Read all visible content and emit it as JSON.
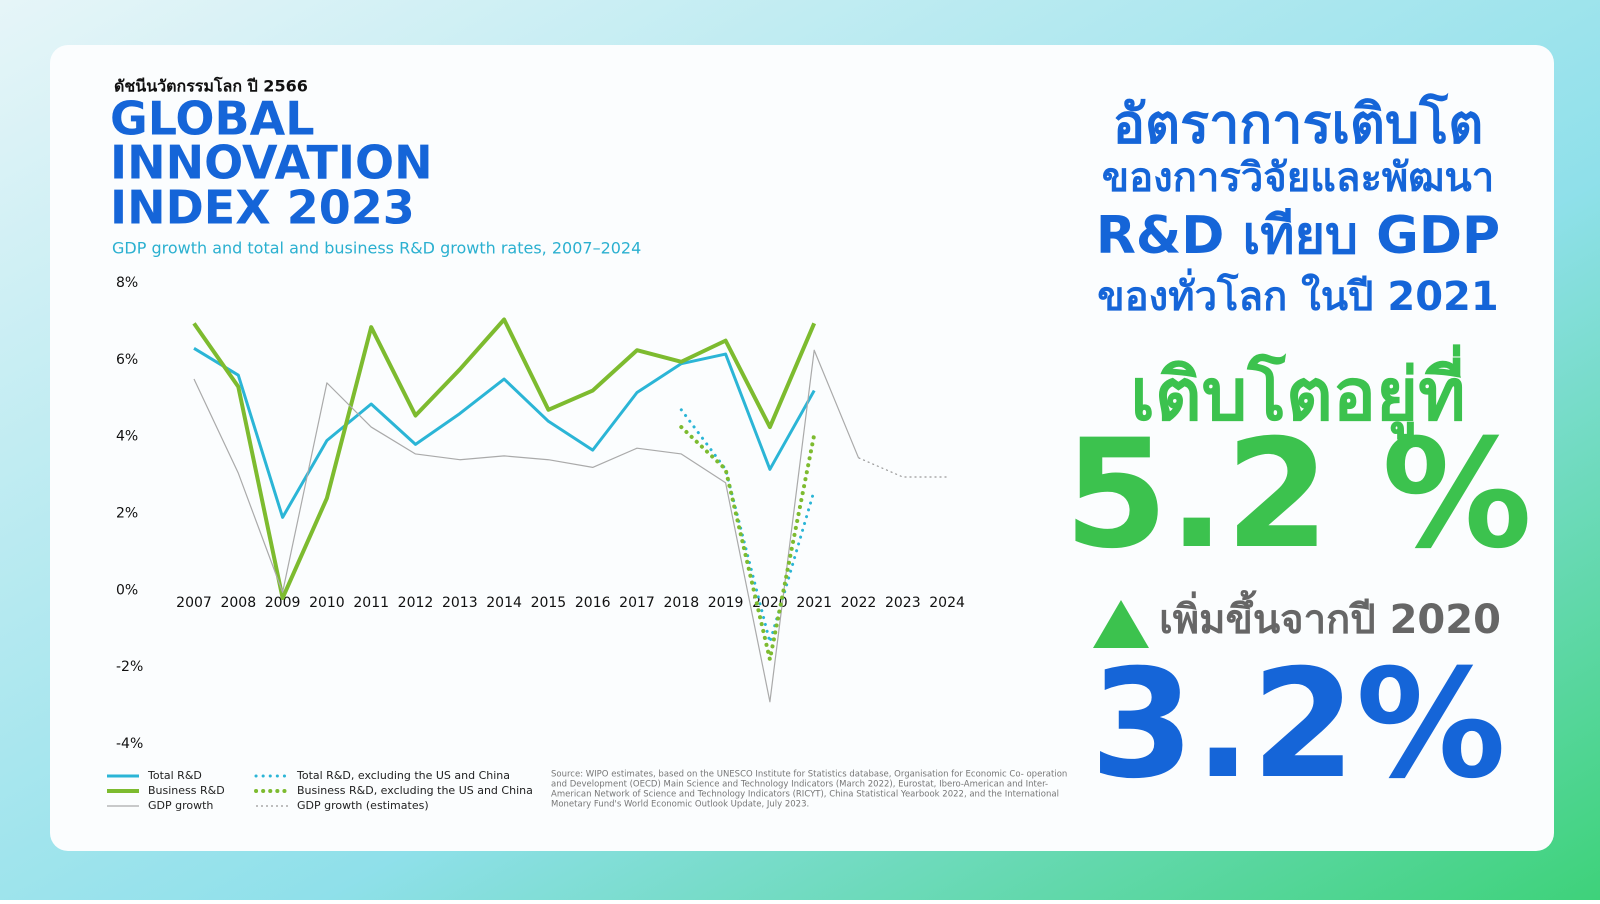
{
  "header": {
    "kicker": "ดัชนีนวัตกรรมโลก ปี 2566",
    "title_lines": [
      "GLOBAL",
      "INNOVATION",
      "INDEX 2023"
    ]
  },
  "chart_data": {
    "type": "line",
    "title": "GDP growth and total and business R&D growth rates, 2007–2024",
    "categories": [
      "2007",
      "2008",
      "2009",
      "2010",
      "2011",
      "2012",
      "2013",
      "2014",
      "2015",
      "2016",
      "2017",
      "2018",
      "2019",
      "2020",
      "2021",
      "2022",
      "2023",
      "2024"
    ],
    "ylim": [
      -4,
      8
    ],
    "yticks": [
      {
        "value": -4,
        "label": "-4%"
      },
      {
        "value": -2,
        "label": "-2%"
      },
      {
        "value": 0,
        "label": "0%"
      },
      {
        "value": 2,
        "label": "2%"
      },
      {
        "value": 4,
        "label": "4%"
      },
      {
        "value": 6,
        "label": "6%"
      },
      {
        "value": 8,
        "label": "8%"
      }
    ],
    "grid": false,
    "series": [
      {
        "name": "Total R&D",
        "color": "#2bb5d6",
        "style": "solid",
        "width": 3,
        "values": [
          6.3,
          5.6,
          1.9,
          3.9,
          4.85,
          3.8,
          4.6,
          5.5,
          4.4,
          3.65,
          5.15,
          5.9,
          6.15,
          3.15,
          5.2,
          null,
          null,
          null
        ]
      },
      {
        "name": "Business R&D",
        "color": "#7dbb2f",
        "style": "solid",
        "width": 4,
        "values": [
          6.95,
          5.3,
          -0.2,
          2.4,
          6.85,
          4.55,
          5.75,
          7.05,
          4.7,
          5.2,
          6.25,
          5.95,
          6.5,
          4.25,
          6.95,
          null,
          null,
          null
        ]
      },
      {
        "name": "GDP growth",
        "color": "#aaaaaa",
        "style": "solid",
        "width": 1.2,
        "values": [
          5.5,
          3.05,
          -0.05,
          5.4,
          4.25,
          3.55,
          3.4,
          3.5,
          3.4,
          3.2,
          3.7,
          3.55,
          2.8,
          -2.9,
          6.25,
          3.45,
          null,
          null
        ]
      },
      {
        "name": "Total R&D, excluding the US and China",
        "color": "#2bb5d6",
        "style": "dotted",
        "width": 3,
        "values": [
          null,
          null,
          null,
          null,
          null,
          null,
          null,
          null,
          null,
          null,
          null,
          4.7,
          3.15,
          -1.35,
          2.6,
          null,
          null,
          null
        ]
      },
      {
        "name": "Business R&D, excluding the US and China",
        "color": "#7dbb2f",
        "style": "dotted",
        "width": 4,
        "values": [
          null,
          null,
          null,
          null,
          null,
          null,
          null,
          null,
          null,
          null,
          null,
          4.25,
          3.15,
          -1.8,
          4.05,
          null,
          null,
          null
        ]
      },
      {
        "name": "GDP growth (estimates)",
        "color": "#999999",
        "style": "dotted",
        "width": 1.2,
        "values": [
          null,
          null,
          null,
          null,
          null,
          null,
          null,
          null,
          null,
          null,
          null,
          null,
          null,
          null,
          null,
          3.45,
          2.95,
          2.95
        ]
      }
    ],
    "source_lines": [
      "Source: WIPO estimates, based on the UNESCO Institute for Statistics database, Organisation for Economic Co- operation",
      "and Development (OECD) Main Science and Technology Indicators (March 2022), Eurostat, Ibero-American and Inter-",
      "American Network of Science and Technology Indicators (RICYT), China Statistical Yearbook 2022, and the International",
      "Monetary Fund's World Economic Outlook Update, July 2023."
    ]
  },
  "callout": {
    "lines": [
      "อัตราการเติบโต",
      "ของการวิจัยและพัฒนา",
      "R&D เทียบ GDP",
      "ของทั่วโลก ในปี 2021"
    ],
    "growth_label": "เติบโตอยู่ที่",
    "growth_value": "5.2 %",
    "increase_label": "เพิ่มขึ้นจากปี 2020",
    "increase_value": "3.2%"
  }
}
